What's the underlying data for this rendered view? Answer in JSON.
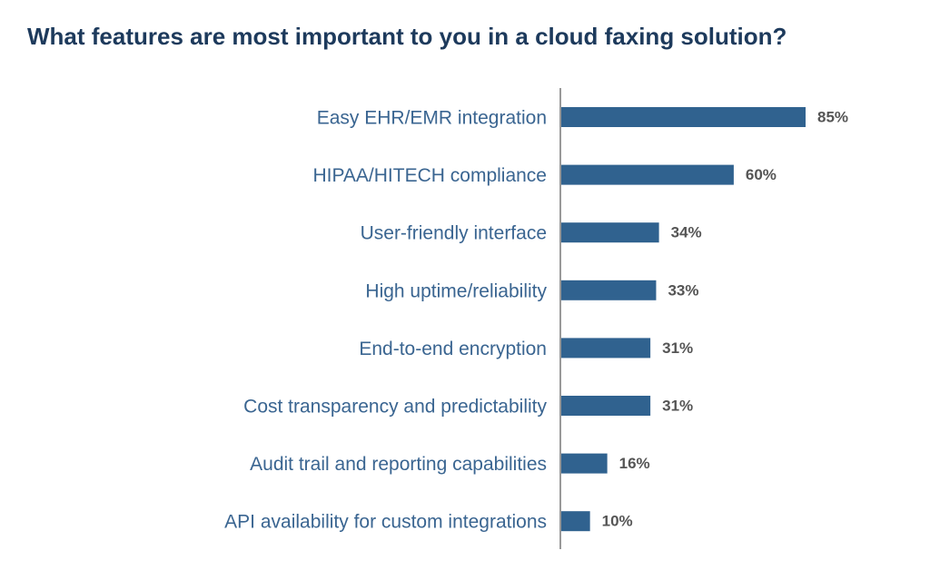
{
  "chart_data": {
    "type": "bar",
    "orientation": "horizontal",
    "title": "What features are most important to you in a cloud faxing solution?",
    "categories": [
      "Easy EHR/EMR integration",
      "HIPAA/HITECH compliance",
      "User-friendly interface",
      "High uptime/reliability",
      "End-to-end encryption",
      "Cost transparency and predictability",
      "Audit trail and reporting capabilities",
      "API availability for custom integrations"
    ],
    "values": [
      85,
      60,
      34,
      33,
      31,
      31,
      16,
      10
    ],
    "value_labels": [
      "85%",
      "60%",
      "34%",
      "33%",
      "31%",
      "31%",
      "16%",
      "10%"
    ],
    "color": "#30628f"
  }
}
